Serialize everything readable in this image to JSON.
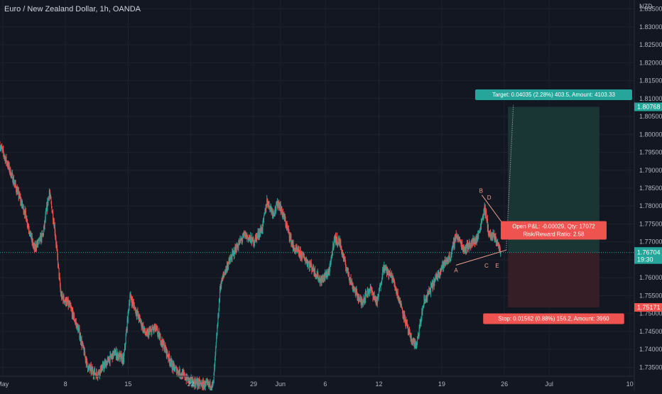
{
  "header": {
    "symbol_title": "Euro / New Zealand Dollar, 1h, OANDA"
  },
  "axis": {
    "currency": "NZD"
  },
  "colors": {
    "bg": "#131722",
    "grid": "#1e222d",
    "up": "#26a69a",
    "down": "#ef5350",
    "axis_text": "#b2b5be",
    "pattern": "#f0a18f",
    "profit_zone": "#1b3a36",
    "loss_zone": "#3a1f27"
  },
  "chart_data": {
    "type": "candlestick",
    "title": "Euro / New Zealand Dollar, 1h, OANDA",
    "y_unit": "NZD",
    "ylim": [
      1.7325,
      1.8375
    ],
    "x_range_days": [
      -0.3,
      70.5
    ],
    "y_ticks": [
      1.835,
      1.83,
      1.825,
      1.82,
      1.815,
      1.81,
      1.805,
      1.8,
      1.795,
      1.79,
      1.785,
      1.78,
      1.775,
      1.77,
      1.765,
      1.76,
      1.755,
      1.75,
      1.745,
      1.74,
      1.735
    ],
    "x_ticks": [
      {
        "label": "May",
        "day": 0
      },
      {
        "label": "8",
        "day": 7
      },
      {
        "label": "15",
        "day": 14
      },
      {
        "label": "22",
        "day": 21
      },
      {
        "label": "29",
        "day": 28
      },
      {
        "label": "Jun",
        "day": 31
      },
      {
        "label": "6",
        "day": 36
      },
      {
        "label": "12",
        "day": 42
      },
      {
        "label": "19",
        "day": 49
      },
      {
        "label": "26",
        "day": 56
      },
      {
        "label": "Jul",
        "day": 61
      },
      {
        "label": "10",
        "day": 70
      }
    ],
    "price_anchors": [
      [
        -0.3,
        1.797
      ],
      [
        0.5,
        1.792
      ],
      [
        1.5,
        1.785
      ],
      [
        2.5,
        1.778
      ],
      [
        3.5,
        1.768
      ],
      [
        4.5,
        1.772
      ],
      [
        5.2,
        1.784
      ],
      [
        5.8,
        1.774
      ],
      [
        6.5,
        1.755
      ],
      [
        7.5,
        1.752
      ],
      [
        8.5,
        1.745
      ],
      [
        9.5,
        1.735
      ],
      [
        10.5,
        1.733
      ],
      [
        11.5,
        1.736
      ],
      [
        12.5,
        1.739
      ],
      [
        13.5,
        1.737
      ],
      [
        14.2,
        1.755
      ],
      [
        15.0,
        1.75
      ],
      [
        16.0,
        1.744
      ],
      [
        17.0,
        1.746
      ],
      [
        18.0,
        1.741
      ],
      [
        19.0,
        1.735
      ],
      [
        20.0,
        1.733
      ],
      [
        21.0,
        1.731
      ],
      [
        22.5,
        1.73
      ],
      [
        23.5,
        1.73
      ],
      [
        24.3,
        1.758
      ],
      [
        25.0,
        1.763
      ],
      [
        26.0,
        1.768
      ],
      [
        27.0,
        1.772
      ],
      [
        28.0,
        1.77
      ],
      [
        29.0,
        1.774
      ],
      [
        29.5,
        1.7815
      ],
      [
        30.2,
        1.778
      ],
      [
        30.8,
        1.781
      ],
      [
        31.5,
        1.776
      ],
      [
        32.5,
        1.768
      ],
      [
        33.5,
        1.766
      ],
      [
        34.5,
        1.763
      ],
      [
        35.5,
        1.759
      ],
      [
        36.5,
        1.762
      ],
      [
        37.0,
        1.771
      ],
      [
        37.6,
        1.77
      ],
      [
        38.2,
        1.764
      ],
      [
        39.0,
        1.758
      ],
      [
        40.0,
        1.753
      ],
      [
        41.0,
        1.757
      ],
      [
        41.8,
        1.753
      ],
      [
        42.5,
        1.763
      ],
      [
        43.5,
        1.76
      ],
      [
        44.5,
        1.752
      ],
      [
        45.5,
        1.743
      ],
      [
        46.2,
        1.741
      ],
      [
        47.0,
        1.753
      ],
      [
        48.0,
        1.758
      ],
      [
        49.0,
        1.763
      ],
      [
        50.0,
        1.766
      ],
      [
        50.6,
        1.772
      ],
      [
        51.5,
        1.768
      ],
      [
        52.0,
        1.769
      ],
      [
        53.0,
        1.771
      ],
      [
        53.8,
        1.7795
      ],
      [
        54.3,
        1.772
      ],
      [
        55.0,
        1.771
      ],
      [
        55.6,
        1.7672
      ]
    ],
    "annotations": {
      "pattern_labels": [
        "A",
        "B",
        "C",
        "D",
        "E"
      ],
      "long_position": {
        "entry": 1.76704,
        "target": 1.80768,
        "stop": 1.75171,
        "target_text": "Target: 0.04035 (2.28%) 403.5, Amount: 4103.33",
        "stats_line1": "Open P&L: -0.00029, Qty: 17072",
        "stats_line2": "Risk/Reward Ratio: 2.58",
        "stop_text": "Stop: 0.01562 (0.88%) 156.2, Amount: 3960"
      },
      "price_badges": [
        {
          "price": 1.80768,
          "text": "1.80768",
          "color": "#26a69a"
        },
        {
          "price": 1.76733,
          "text": "1.76733",
          "color": "#26a69a"
        },
        {
          "price": 1.76704,
          "text": "1.76704",
          "sub": "19:30",
          "color": "#26a69a"
        },
        {
          "price": 1.75171,
          "text": "1.75171",
          "color": "#ef5350"
        }
      ]
    }
  }
}
